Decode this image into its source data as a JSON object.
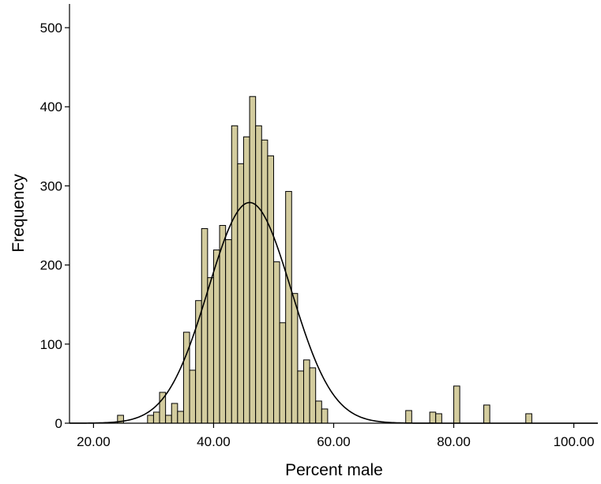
{
  "chart_data": {
    "type": "bar",
    "subtype": "histogram",
    "xlabel": "Percent male",
    "ylabel": "Frequency",
    "xlim": [
      16,
      104
    ],
    "ylim": [
      0,
      530
    ],
    "x_ticks": [
      20,
      40,
      60,
      80,
      100
    ],
    "x_tick_labels": [
      "20.00",
      "40.00",
      "60.00",
      "80.00",
      "100.00"
    ],
    "y_ticks": [
      0,
      100,
      200,
      300,
      400,
      500
    ],
    "y_tick_labels": [
      "0",
      "100",
      "200",
      "300",
      "400",
      "500"
    ],
    "bin_width": 1,
    "bins": [
      {
        "x": 24,
        "count": 10
      },
      {
        "x": 29,
        "count": 10
      },
      {
        "x": 30,
        "count": 14
      },
      {
        "x": 31,
        "count": 39
      },
      {
        "x": 32,
        "count": 10
      },
      {
        "x": 33,
        "count": 25
      },
      {
        "x": 34,
        "count": 15
      },
      {
        "x": 35,
        "count": 115
      },
      {
        "x": 36,
        "count": 67
      },
      {
        "x": 37,
        "count": 155
      },
      {
        "x": 38,
        "count": 246
      },
      {
        "x": 39,
        "count": 184
      },
      {
        "x": 40,
        "count": 219
      },
      {
        "x": 41,
        "count": 250
      },
      {
        "x": 42,
        "count": 232
      },
      {
        "x": 43,
        "count": 376
      },
      {
        "x": 44,
        "count": 328
      },
      {
        "x": 45,
        "count": 362
      },
      {
        "x": 46,
        "count": 413
      },
      {
        "x": 47,
        "count": 376
      },
      {
        "x": 48,
        "count": 358
      },
      {
        "x": 49,
        "count": 338
      },
      {
        "x": 50,
        "count": 204
      },
      {
        "x": 51,
        "count": 127
      },
      {
        "x": 52,
        "count": 293
      },
      {
        "x": 53,
        "count": 164
      },
      {
        "x": 54,
        "count": 66
      },
      {
        "x": 55,
        "count": 80
      },
      {
        "x": 56,
        "count": 70
      },
      {
        "x": 57,
        "count": 28
      },
      {
        "x": 58,
        "count": 18
      },
      {
        "x": 72,
        "count": 16
      },
      {
        "x": 76,
        "count": 14
      },
      {
        "x": 77,
        "count": 12
      },
      {
        "x": 80,
        "count": 47
      },
      {
        "x": 85,
        "count": 23
      },
      {
        "x": 92,
        "count": 12
      }
    ],
    "normal_curve": {
      "mean": 46.0,
      "sd": 6.9,
      "peak": 279
    },
    "bar_fill": "#d3cc9e",
    "bar_stroke": "#000000",
    "curve_color": "#000000",
    "grid": false,
    "legend": "none"
  }
}
